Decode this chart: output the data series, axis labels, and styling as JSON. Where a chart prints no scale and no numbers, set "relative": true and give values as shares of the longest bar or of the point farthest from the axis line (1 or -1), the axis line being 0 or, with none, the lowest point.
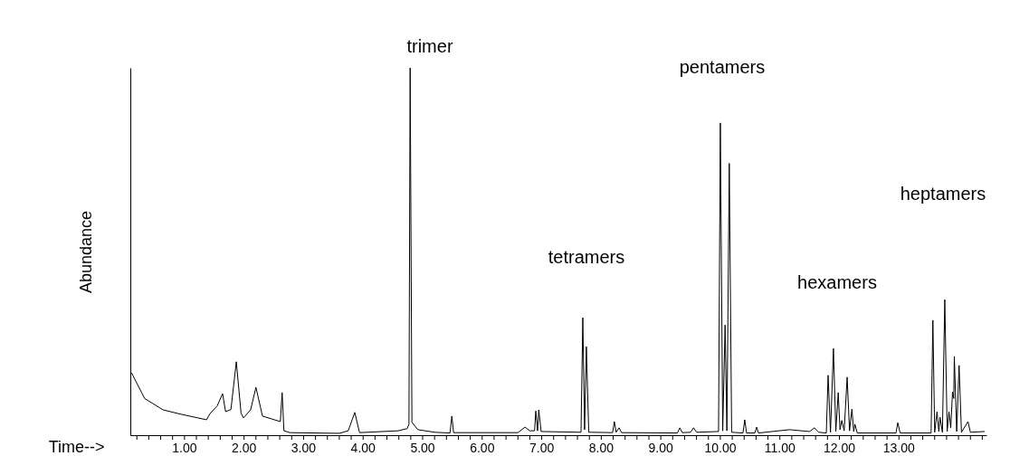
{
  "chart_data": {
    "type": "line",
    "relative": true,
    "xlabel": "Time-->",
    "ylabel": "Abundance",
    "color": "#000000",
    "grid": false,
    "xlim": [
      0.09,
      14.47
    ],
    "xticks": [
      {
        "value": 0.2,
        "label": null
      },
      {
        "value": 0.4,
        "label": null
      },
      {
        "value": 0.6,
        "label": null
      },
      {
        "value": 0.8,
        "label": null
      },
      {
        "value": 1,
        "label": "1.00"
      },
      {
        "value": 1.2,
        "label": null
      },
      {
        "value": 1.4,
        "label": null
      },
      {
        "value": 1.6,
        "label": null
      },
      {
        "value": 1.8,
        "label": null
      },
      {
        "value": 2,
        "label": "2.00"
      },
      {
        "value": 2.2,
        "label": null
      },
      {
        "value": 2.4,
        "label": null
      },
      {
        "value": 2.6,
        "label": null
      },
      {
        "value": 2.8,
        "label": null
      },
      {
        "value": 3,
        "label": "3.00"
      },
      {
        "value": 3.2,
        "label": null
      },
      {
        "value": 3.4,
        "label": null
      },
      {
        "value": 3.6,
        "label": null
      },
      {
        "value": 3.8,
        "label": null
      },
      {
        "value": 4,
        "label": "4.00"
      },
      {
        "value": 4.2,
        "label": null
      },
      {
        "value": 4.4,
        "label": null
      },
      {
        "value": 4.6,
        "label": null
      },
      {
        "value": 4.8,
        "label": null
      },
      {
        "value": 5,
        "label": "5.00"
      },
      {
        "value": 5.2,
        "label": null
      },
      {
        "value": 5.4,
        "label": null
      },
      {
        "value": 5.6,
        "label": null
      },
      {
        "value": 5.8,
        "label": null
      },
      {
        "value": 6,
        "label": "6.00"
      },
      {
        "value": 6.2,
        "label": null
      },
      {
        "value": 6.4,
        "label": null
      },
      {
        "value": 6.6,
        "label": null
      },
      {
        "value": 6.8,
        "label": null
      },
      {
        "value": 7,
        "label": "7.00"
      },
      {
        "value": 7.2,
        "label": null
      },
      {
        "value": 7.4,
        "label": null
      },
      {
        "value": 7.6,
        "label": null
      },
      {
        "value": 7.8,
        "label": null
      },
      {
        "value": 8,
        "label": "8.00"
      },
      {
        "value": 8.2,
        "label": null
      },
      {
        "value": 8.4,
        "label": null
      },
      {
        "value": 8.6,
        "label": null
      },
      {
        "value": 8.8,
        "label": null
      },
      {
        "value": 9,
        "label": "9.00"
      },
      {
        "value": 9.2,
        "label": null
      },
      {
        "value": 9.4,
        "label": null
      },
      {
        "value": 9.6,
        "label": null
      },
      {
        "value": 9.8,
        "label": null
      },
      {
        "value": 10,
        "label": "10.00"
      },
      {
        "value": 10.2,
        "label": null
      },
      {
        "value": 10.4,
        "label": null
      },
      {
        "value": 10.6,
        "label": null
      },
      {
        "value": 10.8,
        "label": null
      },
      {
        "value": 11,
        "label": "11.00"
      },
      {
        "value": 11.2,
        "label": null
      },
      {
        "value": 11.4,
        "label": null
      },
      {
        "value": 11.6,
        "label": null
      },
      {
        "value": 11.8,
        "label": null
      },
      {
        "value": 12,
        "label": "12.00"
      },
      {
        "value": 12.2,
        "label": null
      },
      {
        "value": 12.4,
        "label": null
      },
      {
        "value": 12.6,
        "label": null
      },
      {
        "value": 12.8,
        "label": null
      },
      {
        "value": 13,
        "label": "13.00"
      },
      {
        "value": 13.2,
        "label": null
      },
      {
        "value": 13.4,
        "label": null
      },
      {
        "value": 13.6,
        "label": null
      },
      {
        "value": 13.8,
        "label": null
      },
      {
        "value": 14,
        "label": null
      },
      {
        "value": 14.2,
        "label": null
      },
      {
        "value": 14.4,
        "label": null
      }
    ],
    "x": [
      0.11,
      0.33,
      0.64,
      0.94,
      1.37,
      1.43,
      1.55,
      1.64,
      1.69,
      1.78,
      1.87,
      1.95,
      1.99,
      2.11,
      2.2,
      2.31,
      2.61,
      2.64,
      2.67,
      2.77,
      3.6,
      3.75,
      3.86,
      3.94,
      4.59,
      4.74,
      4.77,
      4.79,
      4.82,
      4.92,
      5.2,
      5.46,
      5.49,
      5.52,
      6.6,
      6.72,
      6.8,
      6.88,
      6.9,
      6.93,
      6.95,
      6.99,
      7.66,
      7.69,
      7.72,
      7.75,
      7.79,
      8.19,
      8.22,
      8.25,
      8.3,
      8.34,
      9.28,
      9.32,
      9.36,
      9.5,
      9.55,
      9.6,
      9.97,
      10.0,
      10.04,
      10.08,
      10.11,
      10.15,
      10.19,
      10.38,
      10.41,
      10.44,
      10.58,
      10.61,
      10.64,
      11.16,
      11.5,
      11.58,
      11.65,
      11.78,
      11.81,
      11.85,
      11.9,
      11.94,
      11.98,
      12.01,
      12.04,
      12.08,
      12.13,
      12.17,
      12.21,
      12.24,
      12.26,
      12.3,
      12.95,
      12.98,
      13.02,
      13.54,
      13.57,
      13.6,
      13.64,
      13.67,
      13.69,
      13.73,
      13.77,
      13.81,
      13.84,
      13.87,
      13.9,
      13.92,
      13.93,
      13.97,
      14.01,
      14.05,
      14.16,
      14.2,
      14.44
    ],
    "values": [
      0.17,
      0.1,
      0.069,
      0.057,
      0.042,
      0.059,
      0.08,
      0.113,
      0.064,
      0.07,
      0.2,
      0.06,
      0.047,
      0.069,
      0.13,
      0.052,
      0.037,
      0.116,
      0.012,
      0.007,
      0.005,
      0.012,
      0.062,
      0.007,
      0.012,
      0.018,
      0.03,
      1.0,
      0.035,
      0.015,
      0.008,
      0.006,
      0.052,
      0.007,
      0.007,
      0.022,
      0.012,
      0.012,
      0.066,
      0.012,
      0.069,
      0.01,
      0.008,
      0.32,
      0.015,
      0.241,
      0.008,
      0.007,
      0.037,
      0.008,
      0.02,
      0.007,
      0.006,
      0.02,
      0.007,
      0.008,
      0.02,
      0.008,
      0.01,
      0.85,
      0.012,
      0.3,
      0.012,
      0.74,
      0.008,
      0.006,
      0.042,
      0.006,
      0.006,
      0.022,
      0.006,
      0.015,
      0.01,
      0.02,
      0.008,
      0.006,
      0.163,
      0.008,
      0.236,
      0.01,
      0.116,
      0.015,
      0.04,
      0.012,
      0.158,
      0.012,
      0.071,
      0.01,
      0.03,
      0.006,
      0.006,
      0.034,
      0.006,
      0.006,
      0.313,
      0.008,
      0.064,
      0.01,
      0.049,
      0.008,
      0.369,
      0.01,
      0.064,
      0.02,
      0.118,
      0.1,
      0.214,
      0.01,
      0.19,
      0.008,
      0.037,
      0.008,
      0.01
    ],
    "annotations": [
      "trimer",
      "tetramers",
      "pentamers",
      "hexamers",
      "heptamers"
    ]
  }
}
